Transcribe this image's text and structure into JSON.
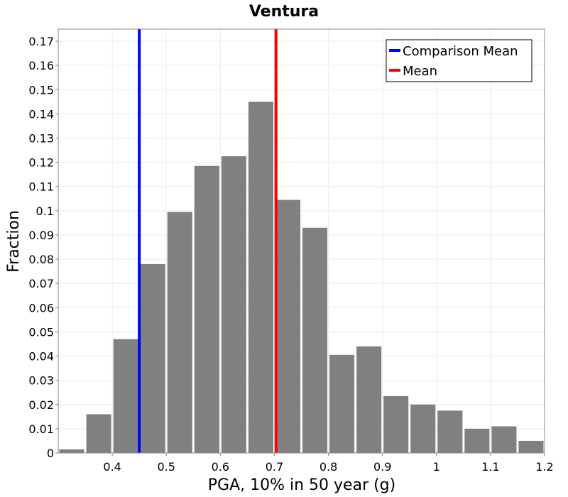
{
  "chart_data": {
    "type": "bar",
    "title": "Ventura",
    "xlabel": "PGA, 10% in 50 year (g)",
    "ylabel": "Fraction",
    "xlim": [
      0.3,
      1.2
    ],
    "ylim": [
      0,
      0.175
    ],
    "xticks": [
      "0.4",
      "0.5",
      "0.6",
      "0.7",
      "0.8",
      "0.9",
      "1",
      "1.1",
      "1.2"
    ],
    "yticks": [
      "0",
      "0.01",
      "0.02",
      "0.03",
      "0.04",
      "0.05",
      "0.06",
      "0.07",
      "0.08",
      "0.09",
      "0.1",
      "0.11",
      "0.12",
      "0.13",
      "0.14",
      "0.15",
      "0.16",
      "0.17"
    ],
    "grid": true,
    "legend_position": "top-right",
    "bar_color": "#808080",
    "bin_width": 0.05,
    "bins": [
      {
        "x": 0.325,
        "value": 0.0015
      },
      {
        "x": 0.375,
        "value": 0.016
      },
      {
        "x": 0.425,
        "value": 0.047
      },
      {
        "x": 0.475,
        "value": 0.078
      },
      {
        "x": 0.525,
        "value": 0.0995
      },
      {
        "x": 0.575,
        "value": 0.1185
      },
      {
        "x": 0.625,
        "value": 0.1225
      },
      {
        "x": 0.675,
        "value": 0.145
      },
      {
        "x": 0.725,
        "value": 0.1045
      },
      {
        "x": 0.775,
        "value": 0.093
      },
      {
        "x": 0.825,
        "value": 0.0405
      },
      {
        "x": 0.875,
        "value": 0.044
      },
      {
        "x": 0.925,
        "value": 0.0235
      },
      {
        "x": 0.975,
        "value": 0.02
      },
      {
        "x": 1.025,
        "value": 0.0175
      },
      {
        "x": 1.075,
        "value": 0.01
      },
      {
        "x": 1.125,
        "value": 0.011
      },
      {
        "x": 1.175,
        "value": 0.005
      }
    ],
    "lines": [
      {
        "name": "Comparison Mean",
        "x": 0.45,
        "color": "#0000ff"
      },
      {
        "name": "Mean",
        "x": 0.703,
        "color": "#ff0000"
      }
    ]
  }
}
